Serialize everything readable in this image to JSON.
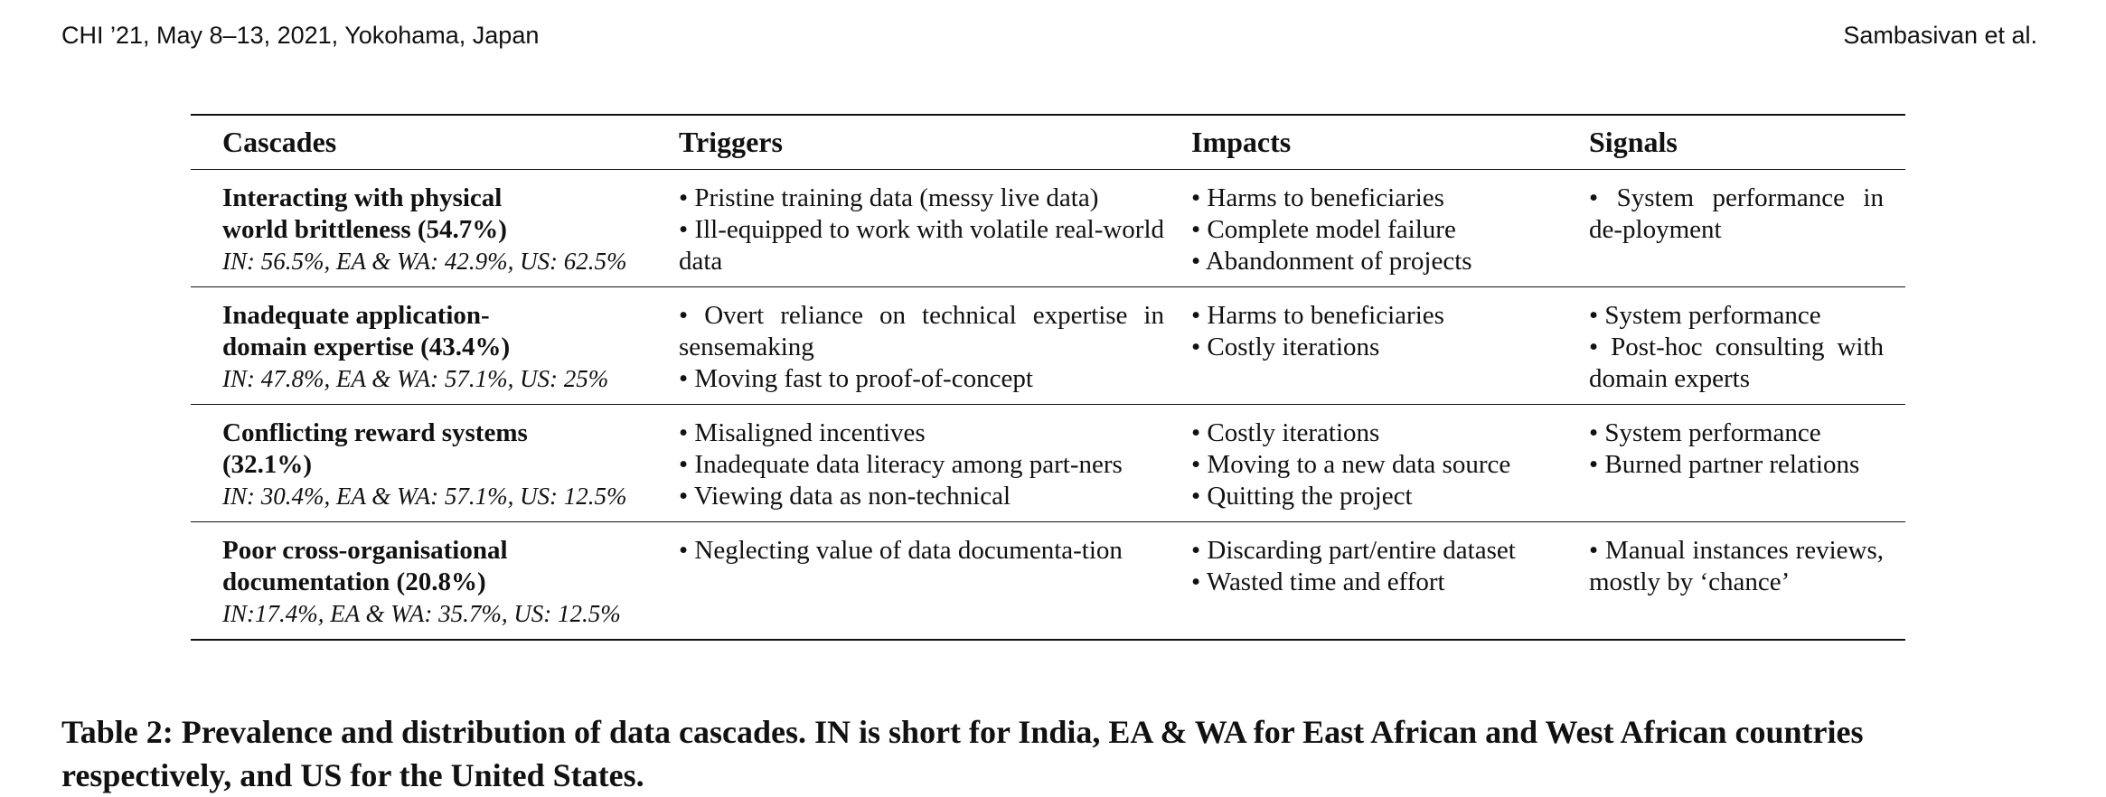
{
  "running_head": {
    "left": "CHI ’21, May 8–13, 2021, Yokohama, Japan",
    "right": "Sambasivan et al."
  },
  "table": {
    "headers": [
      "Cascades",
      "Triggers",
      "Impacts",
      "Signals"
    ],
    "rows": [
      {
        "cascade": "Interacting with physical world brittleness (54.7%)",
        "distribution": "IN: 56.5%, EA & WA: 42.9%, US: 62.5%",
        "triggers": [
          "Pristine training data (messy live data)",
          "Ill-equipped to work with volatile real-world data"
        ],
        "impacts": [
          "Harms to beneficiaries",
          "Complete model failure",
          "Abandonment of projects"
        ],
        "signals": [
          "System performance in de-ployment"
        ]
      },
      {
        "cascade": "Inadequate application-domain expertise (43.4%)",
        "distribution": "IN: 47.8%, EA & WA: 57.1%, US: 25%",
        "triggers": [
          "Overt reliance on technical expertise in sensemaking",
          "Moving fast to proof-of-concept"
        ],
        "impacts": [
          "Harms to beneficiaries",
          "Costly iterations"
        ],
        "signals": [
          "System performance",
          "Post-hoc consulting with domain experts"
        ]
      },
      {
        "cascade": "Conflicting reward systems (32.1%)",
        "distribution": "IN: 30.4%, EA & WA: 57.1%, US: 12.5%",
        "triggers": [
          "Misaligned incentives",
          "Inadequate data literacy among part-ners",
          "Viewing data as non-technical"
        ],
        "impacts": [
          "Costly iterations",
          "Moving to a new data source",
          "Quitting the project"
        ],
        "signals": [
          "System performance",
          "Burned partner relations"
        ]
      },
      {
        "cascade": "Poor cross-organisational documentation (20.8%)",
        "distribution": "IN:17.4%, EA & WA: 35.7%, US: 12.5%",
        "triggers": [
          "Neglecting value of data documenta-tion"
        ],
        "impacts": [
          "Discarding part/entire dataset",
          "Wasted time and effort"
        ],
        "signals": [
          "Manual instances reviews, mostly by ‘chance’"
        ]
      }
    ]
  },
  "caption": "Table 2: Prevalence and distribution of data cascades. IN is short for India, EA & WA for East African and West African countries respectively, and US for the United States."
}
